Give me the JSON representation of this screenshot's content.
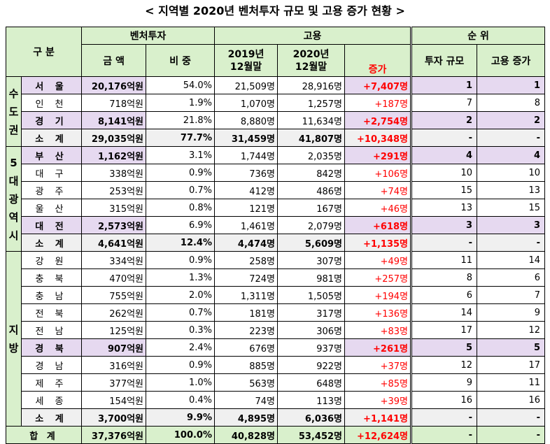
{
  "title": "< 지역별 2020년 벤처투자 규모 및 고용 증가 현황 >",
  "headers": {
    "category": "구 분",
    "venture": "벤처투자",
    "employment": "고용",
    "rank": "순  위",
    "amount": "금  액",
    "share": "비  중",
    "y2019": "2019년",
    "y2019b": "12월말",
    "y2020": "2020년",
    "y2020b": "12월말",
    "increase": "증가",
    "rank_invest": "투자 규모",
    "rank_employ": "고용 증가"
  },
  "groups": {
    "capital": [
      "수",
      "도",
      "권"
    ],
    "metro": [
      "5",
      "대",
      "광",
      "역",
      "시"
    ],
    "local": [
      "지",
      "방"
    ]
  },
  "rows": [
    {
      "region": "서 울",
      "amount": "20,176억원",
      "share": "54.0%",
      "y2019": "21,509명",
      "y2020": "28,916명",
      "inc": "+7,407명",
      "r1": "1",
      "r2": "1"
    },
    {
      "region": "인 천",
      "amount": "718억원",
      "share": "1.9%",
      "y2019": "1,070명",
      "y2020": "1,257명",
      "inc": "+187명",
      "r1": "7",
      "r2": "8"
    },
    {
      "region": "경 기",
      "amount": "8,141억원",
      "share": "21.8%",
      "y2019": "8,880명",
      "y2020": "11,634명",
      "inc": "+2,754명",
      "r1": "2",
      "r2": "2"
    },
    {
      "region": "소 계",
      "amount": "29,035억원",
      "share": "77.7%",
      "y2019": "31,459명",
      "y2020": "41,807명",
      "inc": "+10,348명",
      "r1": "-",
      "r2": "-"
    },
    {
      "region": "부 산",
      "amount": "1,162억원",
      "share": "3.1%",
      "y2019": "1,744명",
      "y2020": "2,035명",
      "inc": "+291명",
      "r1": "4",
      "r2": "4"
    },
    {
      "region": "대 구",
      "amount": "338억원",
      "share": "0.9%",
      "y2019": "736명",
      "y2020": "842명",
      "inc": "+106명",
      "r1": "10",
      "r2": "10"
    },
    {
      "region": "광 주",
      "amount": "253억원",
      "share": "0.7%",
      "y2019": "412명",
      "y2020": "486명",
      "inc": "+74명",
      "r1": "15",
      "r2": "13"
    },
    {
      "region": "울 산",
      "amount": "315억원",
      "share": "0.8%",
      "y2019": "121명",
      "y2020": "167명",
      "inc": "+46명",
      "r1": "13",
      "r2": "15"
    },
    {
      "region": "대 전",
      "amount": "2,573억원",
      "share": "6.9%",
      "y2019": "1,461명",
      "y2020": "2,079명",
      "inc": "+618명",
      "r1": "3",
      "r2": "3"
    },
    {
      "region": "소 계",
      "amount": "4,641억원",
      "share": "12.4%",
      "y2019": "4,474명",
      "y2020": "5,609명",
      "inc": "+1,135명",
      "r1": "-",
      "r2": "-"
    },
    {
      "region": "강 원",
      "amount": "334억원",
      "share": "0.9%",
      "y2019": "258명",
      "y2020": "307명",
      "inc": "+49명",
      "r1": "11",
      "r2": "14"
    },
    {
      "region": "충 북",
      "amount": "470억원",
      "share": "1.3%",
      "y2019": "724명",
      "y2020": "981명",
      "inc": "+257명",
      "r1": "8",
      "r2": "6"
    },
    {
      "region": "충 남",
      "amount": "755억원",
      "share": "2.0%",
      "y2019": "1,311명",
      "y2020": "1,505명",
      "inc": "+194명",
      "r1": "6",
      "r2": "7"
    },
    {
      "region": "전 북",
      "amount": "262억원",
      "share": "0.7%",
      "y2019": "181명",
      "y2020": "317명",
      "inc": "+136명",
      "r1": "14",
      "r2": "9"
    },
    {
      "region": "전 남",
      "amount": "125억원",
      "share": "0.3%",
      "y2019": "223명",
      "y2020": "306명",
      "inc": "+83명",
      "r1": "17",
      "r2": "12"
    },
    {
      "region": "경 북",
      "amount": "907억원",
      "share": "2.4%",
      "y2019": "676명",
      "y2020": "937명",
      "inc": "+261명",
      "r1": "5",
      "r2": "5"
    },
    {
      "region": "경 남",
      "amount": "316억원",
      "share": "0.9%",
      "y2019": "885명",
      "y2020": "922명",
      "inc": "+37명",
      "r1": "12",
      "r2": "17"
    },
    {
      "region": "제 주",
      "amount": "377억원",
      "share": "1.0%",
      "y2019": "563명",
      "y2020": "648명",
      "inc": "+85명",
      "r1": "9",
      "r2": "11"
    },
    {
      "region": "세 종",
      "amount": "154억원",
      "share": "0.4%",
      "y2019": "74명",
      "y2020": "113명",
      "inc": "+39명",
      "r1": "16",
      "r2": "16"
    },
    {
      "region": "소 계",
      "amount": "3,700억원",
      "share": "9.9%",
      "y2019": "4,895명",
      "y2020": "6,036명",
      "inc": "+1,141명",
      "r1": "-",
      "r2": "-"
    }
  ],
  "total": {
    "label": "합  계",
    "amount": "37,376억원",
    "share": "100.0%",
    "y2019": "40,828명",
    "y2020": "53,452명",
    "inc": "+12,624명",
    "r1": "-",
    "r2": "-"
  }
}
